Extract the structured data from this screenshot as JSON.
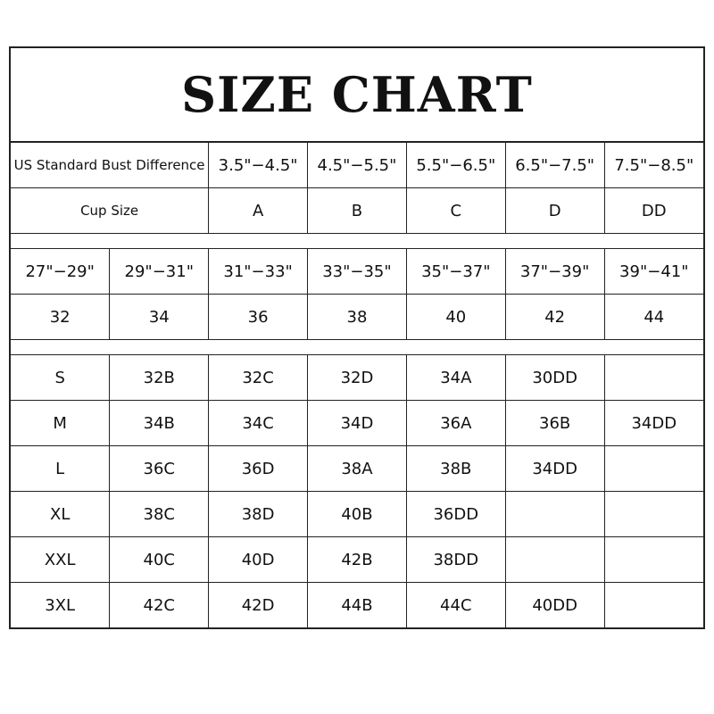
{
  "title": "SIZE CHART",
  "bust_difference": {
    "label": "US Standard Bust Difference",
    "values": [
      "3.5\"−4.5\"",
      "4.5\"−5.5\"",
      "5.5\"−6.5\"",
      "6.5\"−7.5\"",
      "7.5\"−8.5\""
    ]
  },
  "cup_size": {
    "label": "Cup Size",
    "values": [
      "A",
      "B",
      "C",
      "D",
      "DD"
    ]
  },
  "underbust": [
    "27\"−29\"",
    "29\"−31\"",
    "31\"−33\"",
    "33\"−35\"",
    "35\"−37\"",
    "37\"−39\"",
    "39\"−41\""
  ],
  "band": [
    "32",
    "34",
    "36",
    "38",
    "40",
    "42",
    "44"
  ],
  "sizes": [
    [
      "S",
      "32B",
      "32C",
      "32D",
      "34A",
      "30DD",
      ""
    ],
    [
      "M",
      "34B",
      "34C",
      "34D",
      "36A",
      "36B",
      "34DD"
    ],
    [
      "L",
      "36C",
      "36D",
      "38A",
      "38B",
      "34DD",
      ""
    ],
    [
      "XL",
      "38C",
      "38D",
      "40B",
      "36DD",
      "",
      ""
    ],
    [
      "XXL",
      "40C",
      "40D",
      "42B",
      "38DD",
      "",
      ""
    ],
    [
      "3XL",
      "42C",
      "42D",
      "44B",
      "44C",
      "40DD",
      ""
    ]
  ]
}
